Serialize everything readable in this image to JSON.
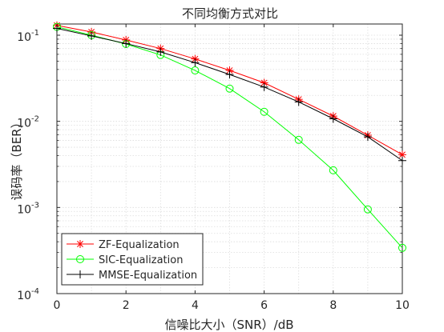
{
  "chart_data": {
    "type": "line",
    "title": "不同均衡方式对比",
    "xlabel": "信噪比大小（SNR）/dB",
    "ylabel": "误码率（BER）",
    "x": [
      0,
      1,
      2,
      3,
      4,
      5,
      6,
      7,
      8,
      9,
      10
    ],
    "xlim": [
      0,
      10
    ],
    "ylim": [
      0.0001,
      0.2
    ],
    "yscale": "log",
    "x_ticks": [
      "0",
      "2",
      "4",
      "6",
      "8",
      "10"
    ],
    "y_ticks": [
      {
        "base": "10",
        "exp": "-1"
      },
      {
        "base": "10",
        "exp": "-2"
      },
      {
        "base": "10",
        "exp": "-3"
      },
      {
        "base": "10",
        "exp": "-4"
      }
    ],
    "grid": true,
    "legend_position": "bottom-left",
    "series": [
      {
        "name": "ZF-Equalization",
        "color": "#ff0000",
        "marker": "asterisk",
        "values": [
          0.13,
          0.109,
          0.088,
          0.07,
          0.053,
          0.039,
          0.028,
          0.018,
          0.0115,
          0.0069,
          0.0041
        ]
      },
      {
        "name": "SIC-Equalization",
        "color": "#00ff00",
        "marker": "circle",
        "values": [
          0.125,
          0.1,
          0.079,
          0.059,
          0.039,
          0.024,
          0.0129,
          0.0061,
          0.0027,
          0.00095,
          0.00034
        ]
      },
      {
        "name": "MMSE-Equalization",
        "color": "#000000",
        "marker": "plus",
        "values": [
          0.12,
          0.098,
          0.08,
          0.064,
          0.048,
          0.035,
          0.025,
          0.0168,
          0.0107,
          0.0066,
          0.0035
        ]
      }
    ]
  }
}
